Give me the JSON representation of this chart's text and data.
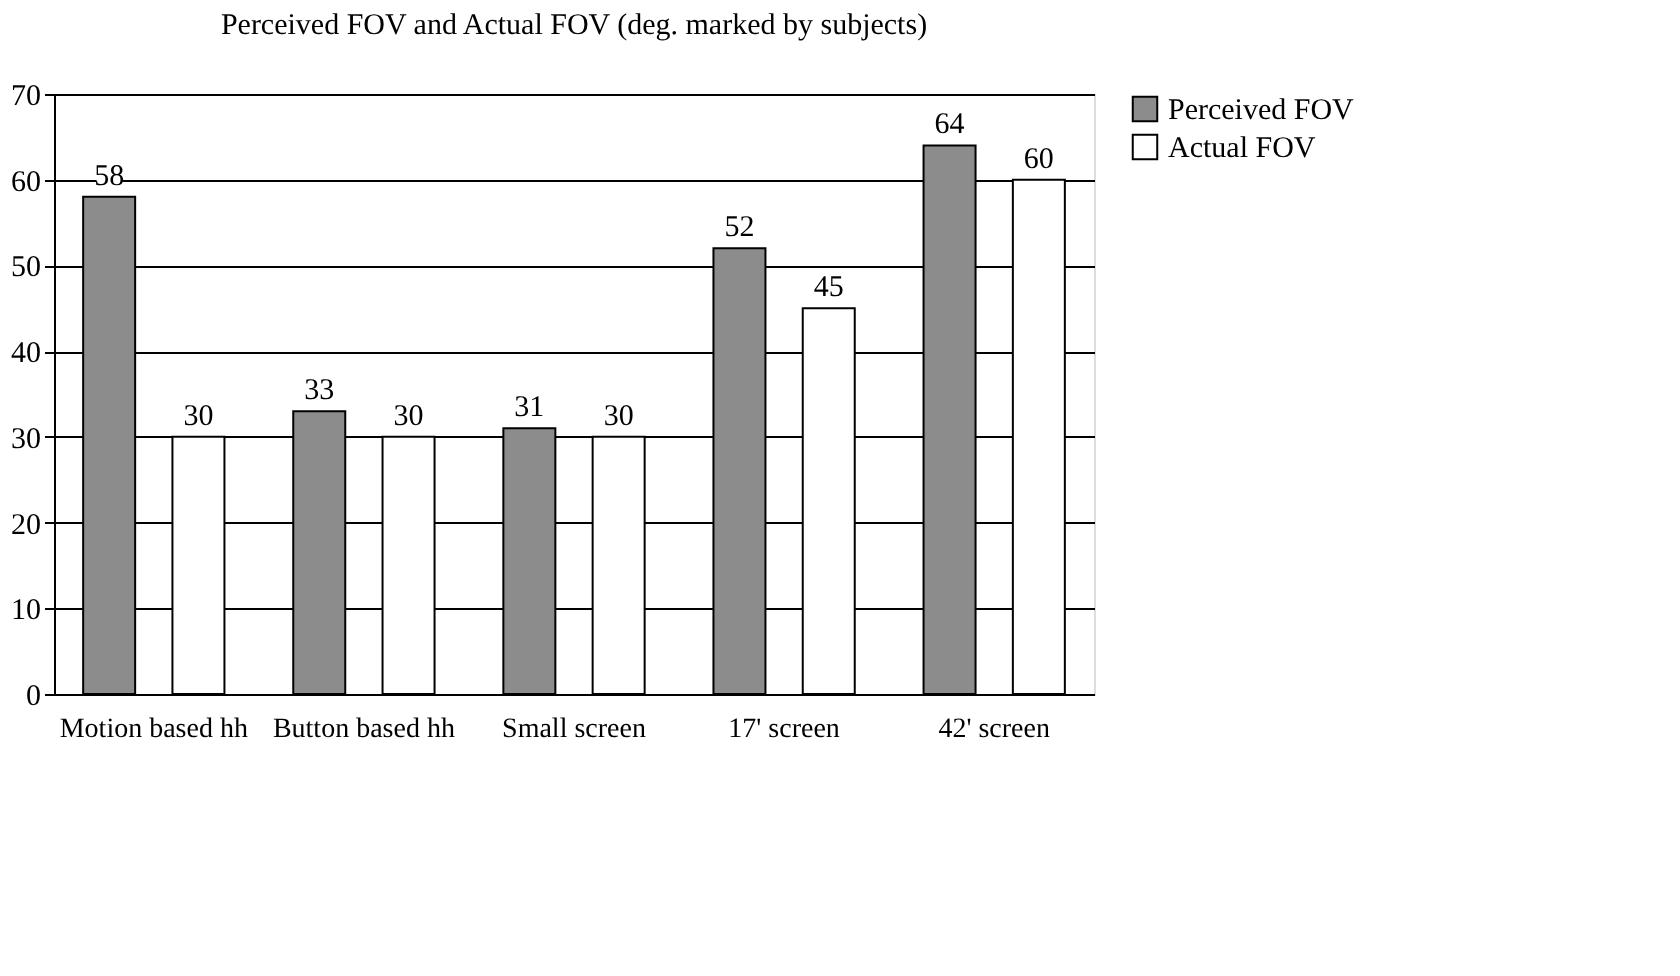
{
  "chart_data": {
    "type": "bar",
    "title": "Perceived FOV and Actual FOV (deg. marked by subjects)",
    "categories": [
      "Motion based hh",
      "Button based hh",
      "Small screen",
      "17' screen",
      "42' screen"
    ],
    "series": [
      {
        "name": "Perceived FOV",
        "color": "#8c8c8c",
        "values": [
          58,
          33,
          31,
          52,
          64
        ]
      },
      {
        "name": "Actual FOV",
        "color": "#ffffff",
        "values": [
          30,
          30,
          30,
          45,
          60
        ]
      }
    ],
    "ylim": [
      0,
      70
    ],
    "yticks": [
      0,
      10,
      20,
      30,
      40,
      50,
      60,
      70
    ],
    "grid": "y",
    "legend": "right",
    "data_labels": true
  }
}
